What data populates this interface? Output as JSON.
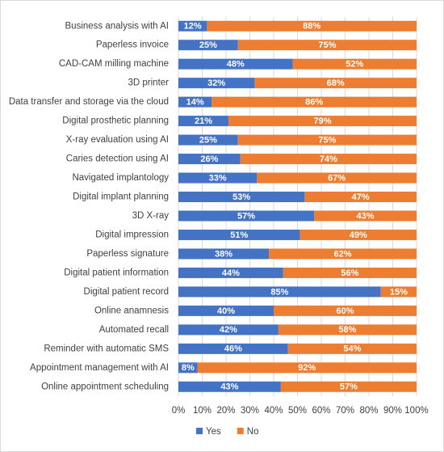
{
  "chart_data": {
    "type": "bar",
    "orientation": "horizontal",
    "stacked": true,
    "categories": [
      "Business analysis with AI",
      "Paperless invoice",
      "CAD-CAM milling machine",
      "3D printer",
      "Data transfer and storage via the cloud",
      "Digital prosthetic planning",
      "X-ray evaluation using AI",
      "Caries detection using AI",
      "Navigated implantology",
      "Digital implant planning",
      "3D X-ray",
      "Digital impression",
      "Paperless signature",
      "Digital patient information",
      "Digital patient record",
      "Online anamnesis",
      "Automated recall",
      "Reminder with automatic SMS",
      "Appointment management with AI",
      "Online appointment scheduling"
    ],
    "series": [
      {
        "name": "Yes",
        "color": "#4472c4",
        "values": [
          12,
          25,
          48,
          32,
          14,
          21,
          25,
          26,
          33,
          53,
          57,
          51,
          38,
          44,
          85,
          40,
          42,
          46,
          8,
          43
        ],
        "value_labels": [
          "12%",
          "25%",
          "48%",
          "32%",
          "14%",
          "21%",
          "25%",
          "26%",
          "33%",
          "53%",
          "57%",
          "51%",
          "38%",
          "44%",
          "85%",
          "40%",
          "42%",
          "46%",
          "8%",
          "43%"
        ]
      },
      {
        "name": "No",
        "color": "#ed7d31",
        "values": [
          88,
          75,
          52,
          68,
          86,
          79,
          75,
          74,
          67,
          47,
          43,
          49,
          62,
          56,
          15,
          60,
          58,
          54,
          92,
          57
        ],
        "value_labels": [
          "88%",
          "75%",
          "52%",
          "68%",
          "86%",
          "79%",
          "75%",
          "74%",
          "67%",
          "47%",
          "43%",
          "49%",
          "62%",
          "56%",
          "15%",
          "60%",
          "58%",
          "54%",
          "92%",
          "57%"
        ]
      }
    ],
    "xlim": [
      0,
      100
    ],
    "xticks": [
      {
        "value": 0,
        "label": "0%"
      },
      {
        "value": 10,
        "label": "10%"
      },
      {
        "value": 20,
        "label": "20%"
      },
      {
        "value": 30,
        "label": "30%"
      },
      {
        "value": 40,
        "label": "40%"
      },
      {
        "value": 50,
        "label": "50%"
      },
      {
        "value": 60,
        "label": "60%"
      },
      {
        "value": 70,
        "label": "70%"
      },
      {
        "value": 80,
        "label": "80%"
      },
      {
        "value": 90,
        "label": "90%"
      },
      {
        "value": 100,
        "label": "100%"
      }
    ],
    "grid": true,
    "legend": "bottom"
  }
}
